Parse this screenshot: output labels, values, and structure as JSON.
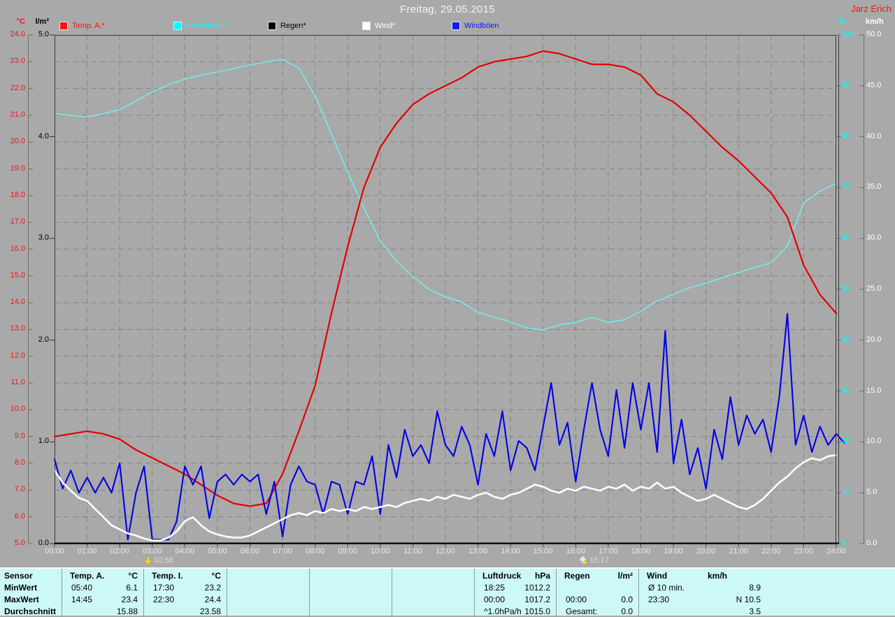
{
  "header": {
    "title": "Freitag, 29.05.2015",
    "user": "Jarz Erich"
  },
  "legend": [
    {
      "label": "Temp. A.*",
      "color": "#ff1010"
    },
    {
      "label": "Feuchte A.*",
      "color": "#00ffff"
    },
    {
      "label": "Regen*",
      "color": "#000000"
    },
    {
      "label": "Wind*",
      "color": "#ffffff"
    },
    {
      "label": "Windböen",
      "color": "#1414ff"
    }
  ],
  "axes": {
    "temp": {
      "unit": "°C",
      "color": "#ff1010",
      "labels": [
        "24.0",
        "23.0",
        "22.0",
        "21.0",
        "20.0",
        "19.0",
        "18.0",
        "17.0",
        "16.0",
        "15.0",
        "14.0",
        "13.0",
        "12.0",
        "11.0",
        "10.0",
        "9.0",
        "8.0",
        "7.0",
        "6.0",
        "5.0"
      ]
    },
    "rain": {
      "unit": "l/m²",
      "color": "#000000",
      "labels": [
        "5.0",
        "4.0",
        "3.0",
        "2.0",
        "1.0",
        "0.0"
      ]
    },
    "humidity": {
      "unit": "%",
      "color": "#00ffff",
      "labels": [
        "100",
        "90",
        "80",
        "70",
        "60",
        "50",
        "40",
        "30",
        "20",
        "10",
        "0"
      ]
    },
    "wind": {
      "unit": "km/h",
      "color": "#ffffff",
      "labels": [
        "50.0",
        "45.0",
        "40.0",
        "35.0",
        "30.0",
        "25.0",
        "20.0",
        "15.0",
        "10.0",
        "5.0",
        "0.0"
      ]
    }
  },
  "x_axis": {
    "labels": [
      "00:00",
      "01:00",
      "02:00",
      "03:00",
      "04:00",
      "05:00",
      "06:00",
      "07:00",
      "08:00",
      "09:00",
      "10:00",
      "11:00",
      "12:00",
      "13:00",
      "14:00",
      "15:00",
      "16:00",
      "17:00",
      "18:00",
      "19:00",
      "20:00",
      "21:00",
      "22:00",
      "23:00",
      "24:00"
    ]
  },
  "markers": [
    {
      "time": "02:56",
      "hour": 2.93,
      "icon": "yellow-down-arrow"
    },
    {
      "time": "16:17",
      "hour": 16.28,
      "icon": "rise-icon"
    }
  ],
  "chart_data": {
    "type": "line",
    "title": "Freitag, 29.05.2015",
    "x_unit": "hours",
    "x_range": [
      0,
      24
    ],
    "grid": {
      "vertical_every_hours": 1,
      "horizontal_every_degC": 1
    },
    "series": [
      {
        "name": "Temp. A.",
        "unit": "°C",
        "axis": "temp",
        "axis_range": [
          5,
          24
        ],
        "color": "#e30000",
        "interval_min": 30,
        "values": [
          9.0,
          9.1,
          9.2,
          9.1,
          8.9,
          8.5,
          8.2,
          7.9,
          7.6,
          7.2,
          6.8,
          6.5,
          6.4,
          6.5,
          7.6,
          9.2,
          10.9,
          13.6,
          16.1,
          18.3,
          19.8,
          20.7,
          21.4,
          21.8,
          22.1,
          22.4,
          22.8,
          23.0,
          23.1,
          23.2,
          23.4,
          23.3,
          23.1,
          22.9,
          22.9,
          22.8,
          22.5,
          21.8,
          21.5,
          21.0,
          20.4,
          19.8,
          19.3,
          18.7,
          18.1,
          17.2,
          15.4,
          14.3,
          13.6
        ]
      },
      {
        "name": "Feuchte A.",
        "unit": "%",
        "axis": "humidity",
        "axis_range": [
          0,
          100
        ],
        "color": "#79e9e9",
        "interval_min": 30,
        "values": [
          84.5,
          84.2,
          83.9,
          84.5,
          85.3,
          87.0,
          88.8,
          90.2,
          91.3,
          92.1,
          92.7,
          93.4,
          94.1,
          94.7,
          95.2,
          93.5,
          88.0,
          80.5,
          73.0,
          66.0,
          59.5,
          55.5,
          52.5,
          50.0,
          48.5,
          47.5,
          45.5,
          44.5,
          43.6,
          42.4,
          42.0,
          43.0,
          43.5,
          44.5,
          43.5,
          44.0,
          45.7,
          47.7,
          49.0,
          50.3,
          51.2,
          52.3,
          53.3,
          54.3,
          55.2,
          58.5,
          67.0,
          69.3,
          70.8
        ]
      },
      {
        "name": "Regen",
        "unit": "l/m²",
        "axis": "rain",
        "axis_range": [
          0,
          5
        ],
        "color": "#000000",
        "interval_min": 60,
        "values": [
          0,
          0,
          0,
          0,
          0,
          0,
          0,
          0,
          0,
          0,
          0,
          0,
          0,
          0,
          0,
          0,
          0,
          0,
          0,
          0,
          0,
          0,
          0,
          0,
          0
        ]
      },
      {
        "name": "Windböen",
        "unit": "km/h",
        "axis": "wind",
        "axis_range": [
          0,
          50
        ],
        "color": "#0000e6",
        "interval_min": 15,
        "values": [
          8.3,
          5.4,
          7.2,
          5.0,
          6.5,
          5.0,
          6.5,
          5.0,
          7.9,
          0.4,
          5.0,
          7.6,
          0.4,
          0.4,
          0.4,
          2.2,
          7.6,
          5.8,
          7.6,
          2.5,
          6.1,
          6.8,
          5.8,
          6.8,
          6.1,
          6.8,
          2.9,
          6.1,
          0.7,
          5.8,
          7.6,
          6.1,
          5.8,
          2.9,
          6.1,
          5.8,
          2.9,
          6.1,
          5.8,
          8.6,
          2.9,
          9.7,
          6.5,
          11.2,
          8.6,
          9.7,
          7.9,
          13.0,
          9.7,
          8.6,
          11.5,
          9.7,
          5.8,
          10.8,
          8.6,
          13.0,
          7.2,
          10.1,
          9.4,
          7.2,
          11.5,
          15.8,
          9.7,
          11.9,
          6.1,
          11.2,
          15.8,
          11.2,
          8.6,
          15.1,
          9.4,
          15.8,
          11.2,
          15.8,
          9.0,
          20.9,
          7.9,
          12.2,
          6.8,
          9.4,
          5.4,
          11.2,
          8.3,
          14.4,
          9.7,
          12.6,
          10.8,
          12.2,
          9.0,
          14.4,
          22.6,
          9.7,
          12.6,
          9.0,
          11.5,
          9.7,
          10.8,
          9.9
        ]
      },
      {
        "name": "Wind",
        "unit": "km/h",
        "axis": "wind",
        "axis_range": [
          0,
          50
        ],
        "color": "#ffffff",
        "interval_min": 15,
        "values": [
          7.2,
          6.0,
          5.2,
          4.5,
          4.2,
          3.4,
          2.6,
          1.8,
          1.4,
          1.0,
          0.8,
          0.5,
          0.3,
          0.3,
          0.6,
          1.2,
          2.2,
          2.6,
          1.8,
          1.2,
          0.9,
          0.7,
          0.6,
          0.6,
          0.8,
          1.2,
          1.6,
          2.0,
          2.4,
          2.8,
          3.0,
          2.8,
          3.2,
          3.0,
          3.4,
          3.2,
          3.4,
          3.2,
          3.6,
          3.4,
          3.6,
          3.8,
          3.6,
          4.0,
          4.2,
          4.4,
          4.2,
          4.6,
          4.4,
          4.8,
          4.6,
          4.4,
          4.8,
          5.0,
          4.6,
          4.4,
          4.8,
          5.0,
          5.4,
          5.8,
          5.6,
          5.2,
          5.0,
          5.4,
          5.2,
          5.6,
          5.4,
          5.2,
          5.6,
          5.4,
          5.8,
          5.2,
          5.6,
          5.4,
          6.0,
          5.4,
          5.6,
          5.0,
          4.6,
          4.2,
          4.4,
          4.8,
          4.4,
          4.0,
          3.6,
          3.4,
          3.8,
          4.4,
          5.2,
          6.0,
          6.6,
          7.4,
          8.0,
          8.4,
          8.2,
          8.6,
          8.7
        ]
      }
    ]
  },
  "footer": {
    "row_labels": [
      "Sensor",
      "MinWert",
      "MaxWert",
      "Durchschnitt"
    ],
    "columns": [
      {
        "name": "Temp. A.",
        "unit": "°C",
        "rows": [
          [
            "05:40",
            "6.1"
          ],
          [
            "14:45",
            "23.4"
          ],
          [
            "",
            "15.88"
          ]
        ]
      },
      {
        "name": "Temp. I.",
        "unit": "°C",
        "rows": [
          [
            "17:30",
            "23.2"
          ],
          [
            "22:30",
            "24.4"
          ],
          [
            "",
            "23.58"
          ]
        ]
      },
      {
        "name": "",
        "unit": "",
        "rows": [
          [
            "",
            ""
          ],
          [
            "",
            ""
          ],
          [
            "",
            ""
          ]
        ]
      },
      {
        "name": "",
        "unit": "",
        "rows": [
          [
            "",
            ""
          ],
          [
            "",
            ""
          ],
          [
            "",
            ""
          ]
        ]
      },
      {
        "name": "",
        "unit": "",
        "rows": [
          [
            "",
            ""
          ],
          [
            "",
            ""
          ],
          [
            "",
            ""
          ]
        ]
      },
      {
        "name": "Luftdruck",
        "unit": "hPa",
        "rows": [
          [
            "18:25",
            "1012.2"
          ],
          [
            "00:00",
            "1017.2"
          ],
          [
            "^1.0hPa/h",
            "1015.0"
          ]
        ]
      },
      {
        "name": "Regen",
        "unit": "l/m²",
        "rows": [
          [
            "",
            ""
          ],
          [
            "00:00",
            "0.0"
          ],
          [
            "Gesamt:",
            "0.0"
          ]
        ]
      },
      {
        "name": "Wind",
        "unit": "km/h",
        "rows": [
          [
            "Ø 10 min.",
            "8.9"
          ],
          [
            "23:30",
            "N 10.5"
          ],
          [
            "",
            "3.5"
          ]
        ]
      }
    ]
  }
}
